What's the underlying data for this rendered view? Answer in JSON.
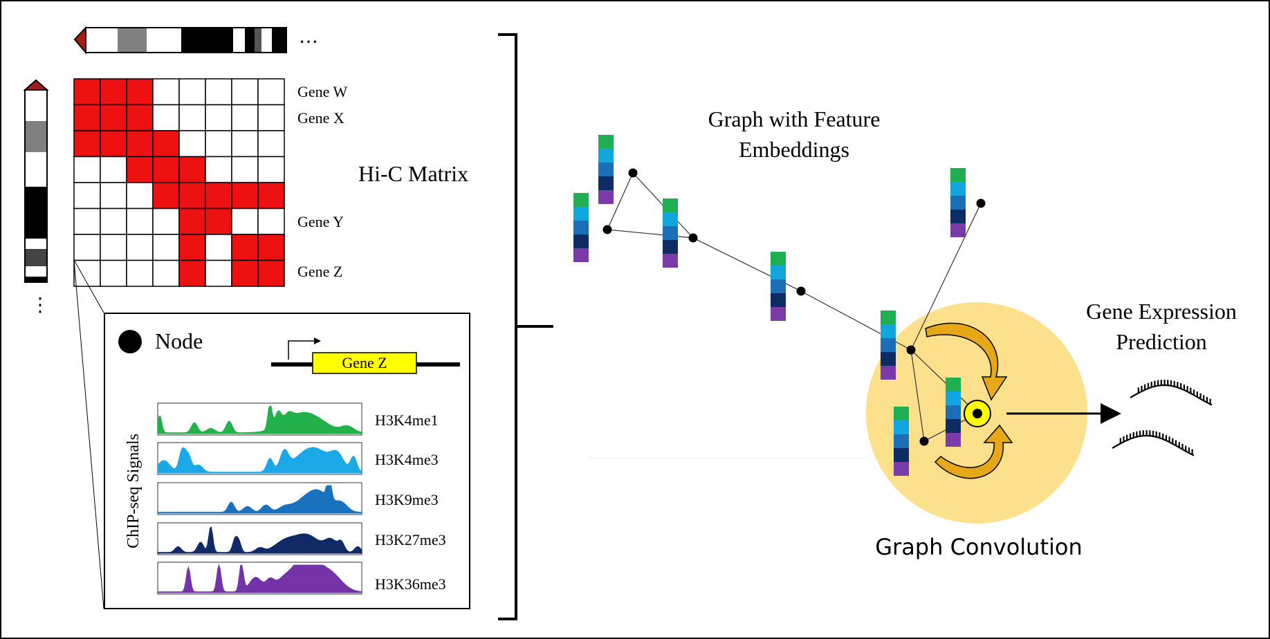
{
  "top_ellipsis": "…",
  "side_ellipsis": "⋮",
  "hic": {
    "title": "Hi-C Matrix",
    "genes": [
      "Gene W",
      "Gene X",
      "Gene Y",
      "Gene Z"
    ],
    "grid": [
      [
        1,
        1,
        1,
        0,
        0,
        0,
        0,
        0
      ],
      [
        1,
        1,
        1,
        0,
        0,
        0,
        0,
        0
      ],
      [
        1,
        1,
        1,
        1,
        0,
        0,
        0,
        0
      ],
      [
        0,
        0,
        1,
        1,
        1,
        0,
        0,
        0
      ],
      [
        0,
        0,
        0,
        1,
        1,
        1,
        1,
        1
      ],
      [
        0,
        0,
        0,
        0,
        1,
        1,
        0,
        0
      ],
      [
        0,
        0,
        0,
        0,
        1,
        0,
        1,
        1
      ],
      [
        0,
        0,
        0,
        0,
        1,
        0,
        1,
        1
      ]
    ],
    "fill_color": "#ee1111"
  },
  "inset": {
    "node_label": "Node",
    "gene_label": "Gene Z",
    "gene_color": "#ffff00",
    "signals_label": "ChIP-seq Signals",
    "tracks": [
      {
        "name": "H3K4me1",
        "color": "#22b04a"
      },
      {
        "name": "H3K4me3",
        "color": "#1aa9e6"
      },
      {
        "name": "H3K9me3",
        "color": "#1a72bf"
      },
      {
        "name": "H3K27me3",
        "color": "#0f2a66"
      },
      {
        "name": "H3K36me3",
        "color": "#7434a8"
      }
    ]
  },
  "graph": {
    "title_line1": "Graph with Feature",
    "title_line2": "Embeddings",
    "embedding_colors": [
      "#1fae52",
      "#12a6e0",
      "#1b6fb8",
      "#0d2c63",
      "#7a3aa8"
    ]
  },
  "convolution": {
    "label": "Graph Convolution",
    "circle_color": "#fde08b",
    "arrow_color": "#e6a817"
  },
  "prediction": {
    "line1": "Gene Expression",
    "line2": "Prediction"
  }
}
